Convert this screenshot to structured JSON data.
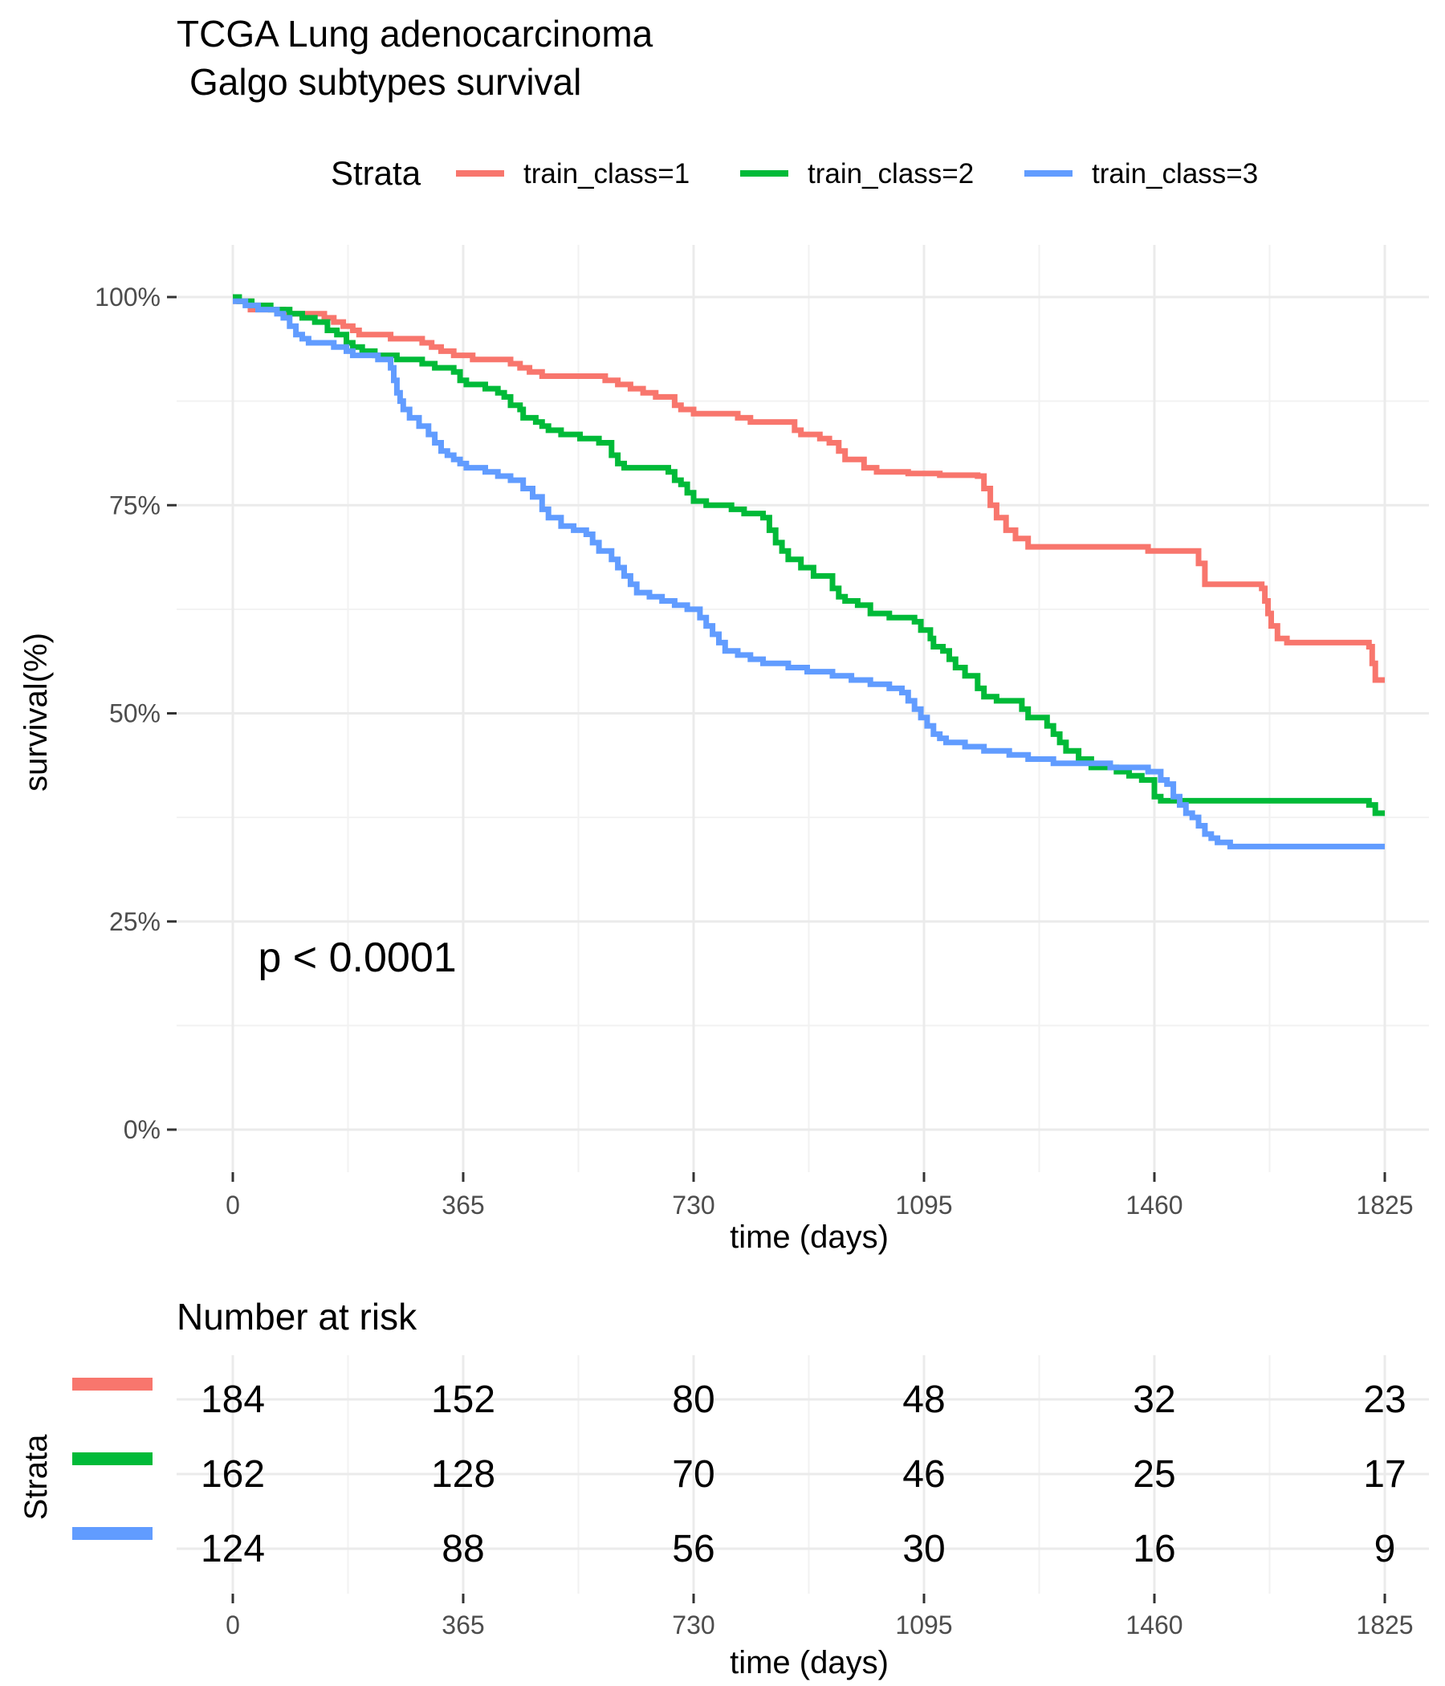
{
  "chart_data": [
    {
      "type": "line",
      "step": true,
      "title": "TCGA Lung adenocarcinoma",
      "subtitle": "Galgo subtypes survival",
      "xlabel": "time (days)",
      "ylabel": "survival(%)",
      "xlim": [
        0,
        1825
      ],
      "ylim": [
        0,
        100
      ],
      "x_ticks": [
        0,
        365,
        730,
        1095,
        1460,
        1825
      ],
      "y_ticks": [
        0,
        25,
        50,
        75,
        100
      ],
      "y_tick_labels": [
        "0%",
        "25%",
        "50%",
        "75%",
        "100%"
      ],
      "grid": true,
      "legend": {
        "title": "Strata",
        "position": "top",
        "entries": [
          "train_class=1",
          "train_class=2",
          "train_class=3"
        ]
      },
      "annotation": "p < 0.0001",
      "annotation_at": [
        40,
        19
      ],
      "series": [
        {
          "name": "train_class=1",
          "color": "#F8766D",
          "points": [
            [
              0,
              100
            ],
            [
              5,
              99.5
            ],
            [
              28,
              98.5
            ],
            [
              80,
              98
            ],
            [
              145,
              97.5
            ],
            [
              160,
              97
            ],
            [
              175,
              96.5
            ],
            [
              190,
              96
            ],
            [
              200,
              95.5
            ],
            [
              250,
              95
            ],
            [
              300,
              94.5
            ],
            [
              315,
              94
            ],
            [
              330,
              93.5
            ],
            [
              350,
              93
            ],
            [
              380,
              92.5
            ],
            [
              440,
              92
            ],
            [
              455,
              91.5
            ],
            [
              470,
              91
            ],
            [
              490,
              90.5
            ],
            [
              590,
              90
            ],
            [
              610,
              89.5
            ],
            [
              630,
              89
            ],
            [
              650,
              88.5
            ],
            [
              670,
              88
            ],
            [
              700,
              87
            ],
            [
              710,
              86.5
            ],
            [
              730,
              86
            ],
            [
              800,
              85.5
            ],
            [
              820,
              85
            ],
            [
              890,
              84
            ],
            [
              900,
              83.5
            ],
            [
              930,
              83
            ],
            [
              945,
              82.5
            ],
            [
              960,
              81.5
            ],
            [
              970,
              80.5
            ],
            [
              1000,
              79.5
            ],
            [
              1020,
              79
            ],
            [
              1070,
              78.8
            ],
            [
              1120,
              78.6
            ],
            [
              1180,
              78.5
            ],
            [
              1190,
              77
            ],
            [
              1200,
              75
            ],
            [
              1210,
              73.5
            ],
            [
              1225,
              72
            ],
            [
              1240,
              71
            ],
            [
              1260,
              70
            ],
            [
              1450,
              69.5
            ],
            [
              1520,
              69.5
            ],
            [
              1530,
              68
            ],
            [
              1540,
              65.5
            ],
            [
              1630,
              65
            ],
            [
              1635,
              63.5
            ],
            [
              1640,
              62
            ],
            [
              1645,
              60.5
            ],
            [
              1655,
              59
            ],
            [
              1670,
              58.5
            ],
            [
              1800,
              58
            ],
            [
              1805,
              56
            ],
            [
              1810,
              54
            ],
            [
              1825,
              54
            ]
          ]
        },
        {
          "name": "train_class=2",
          "color": "#00BA38",
          "points": [
            [
              0,
              100
            ],
            [
              10,
              99.5
            ],
            [
              30,
              99
            ],
            [
              60,
              98.5
            ],
            [
              90,
              98
            ],
            [
              110,
              97.5
            ],
            [
              130,
              97
            ],
            [
              150,
              96
            ],
            [
              165,
              95.5
            ],
            [
              180,
              94.5
            ],
            [
              190,
              94
            ],
            [
              205,
              93.5
            ],
            [
              225,
              93
            ],
            [
              260,
              92.5
            ],
            [
              300,
              92
            ],
            [
              320,
              91.5
            ],
            [
              350,
              91
            ],
            [
              360,
              90
            ],
            [
              370,
              89.5
            ],
            [
              400,
              89
            ],
            [
              420,
              88.5
            ],
            [
              430,
              88
            ],
            [
              440,
              87
            ],
            [
              455,
              86.5
            ],
            [
              460,
              85.5
            ],
            [
              480,
              85
            ],
            [
              490,
              84.5
            ],
            [
              500,
              84
            ],
            [
              520,
              83.5
            ],
            [
              550,
              83
            ],
            [
              580,
              82.5
            ],
            [
              600,
              81
            ],
            [
              610,
              80
            ],
            [
              620,
              79.5
            ],
            [
              690,
              79
            ],
            [
              700,
              78
            ],
            [
              710,
              77.5
            ],
            [
              720,
              76.5
            ],
            [
              730,
              75.5
            ],
            [
              750,
              75
            ],
            [
              790,
              74.5
            ],
            [
              810,
              74
            ],
            [
              840,
              73.5
            ],
            [
              850,
              72
            ],
            [
              860,
              70.5
            ],
            [
              870,
              69.5
            ],
            [
              880,
              68.5
            ],
            [
              900,
              67.5
            ],
            [
              920,
              66.5
            ],
            [
              950,
              65
            ],
            [
              960,
              64
            ],
            [
              970,
              63.5
            ],
            [
              990,
              63
            ],
            [
              1010,
              62
            ],
            [
              1040,
              61.5
            ],
            [
              1080,
              61
            ],
            [
              1090,
              60
            ],
            [
              1105,
              59
            ],
            [
              1110,
              58
            ],
            [
              1125,
              57.5
            ],
            [
              1135,
              56.5
            ],
            [
              1145,
              55.5
            ],
            [
              1160,
              54.5
            ],
            [
              1180,
              53
            ],
            [
              1190,
              52
            ],
            [
              1210,
              51.5
            ],
            [
              1250,
              50.5
            ],
            [
              1260,
              49.5
            ],
            [
              1290,
              48.5
            ],
            [
              1300,
              47.5
            ],
            [
              1310,
              46.5
            ],
            [
              1320,
              45.5
            ],
            [
              1340,
              44.5
            ],
            [
              1360,
              43.5
            ],
            [
              1400,
              43
            ],
            [
              1420,
              42.5
            ],
            [
              1440,
              42
            ],
            [
              1460,
              40
            ],
            [
              1470,
              39.5
            ],
            [
              1800,
              39
            ],
            [
              1810,
              38
            ],
            [
              1825,
              38
            ]
          ]
        },
        {
          "name": "train_class=3",
          "color": "#619CFF",
          "points": [
            [
              0,
              99.5
            ],
            [
              20,
              99
            ],
            [
              40,
              98.5
            ],
            [
              70,
              98
            ],
            [
              80,
              97.5
            ],
            [
              90,
              96.5
            ],
            [
              100,
              95.5
            ],
            [
              110,
              95
            ],
            [
              120,
              94.5
            ],
            [
              160,
              94
            ],
            [
              180,
              93.5
            ],
            [
              190,
              93
            ],
            [
              230,
              92.5
            ],
            [
              250,
              91.5
            ],
            [
              255,
              90
            ],
            [
              260,
              88.5
            ],
            [
              265,
              87.5
            ],
            [
              270,
              86.5
            ],
            [
              280,
              85.5
            ],
            [
              295,
              84.5
            ],
            [
              310,
              83.5
            ],
            [
              320,
              82.5
            ],
            [
              330,
              81.5
            ],
            [
              340,
              81
            ],
            [
              350,
              80.5
            ],
            [
              360,
              80
            ],
            [
              370,
              79.5
            ],
            [
              400,
              79
            ],
            [
              420,
              78.5
            ],
            [
              440,
              78
            ],
            [
              460,
              77
            ],
            [
              475,
              76
            ],
            [
              490,
              74.5
            ],
            [
              500,
              73.5
            ],
            [
              520,
              72.5
            ],
            [
              540,
              72
            ],
            [
              560,
              71.5
            ],
            [
              570,
              70.5
            ],
            [
              580,
              69.5
            ],
            [
              600,
              68.5
            ],
            [
              610,
              67.5
            ],
            [
              620,
              66.5
            ],
            [
              630,
              65.5
            ],
            [
              640,
              64.5
            ],
            [
              660,
              64
            ],
            [
              680,
              63.5
            ],
            [
              700,
              63
            ],
            [
              720,
              62.5
            ],
            [
              740,
              61.5
            ],
            [
              750,
              60.5
            ],
            [
              760,
              59.5
            ],
            [
              770,
              58.5
            ],
            [
              780,
              57.5
            ],
            [
              800,
              57
            ],
            [
              820,
              56.5
            ],
            [
              840,
              56
            ],
            [
              880,
              55.5
            ],
            [
              910,
              55
            ],
            [
              950,
              54.5
            ],
            [
              980,
              54
            ],
            [
              1010,
              53.5
            ],
            [
              1040,
              53
            ],
            [
              1060,
              52.5
            ],
            [
              1070,
              51.5
            ],
            [
              1080,
              50.5
            ],
            [
              1090,
              49.5
            ],
            [
              1100,
              48.5
            ],
            [
              1110,
              47.5
            ],
            [
              1120,
              47
            ],
            [
              1130,
              46.5
            ],
            [
              1160,
              46
            ],
            [
              1190,
              45.5
            ],
            [
              1230,
              45
            ],
            [
              1260,
              44.5
            ],
            [
              1300,
              44
            ],
            [
              1390,
              43.5
            ],
            [
              1450,
              43
            ],
            [
              1470,
              42
            ],
            [
              1480,
              41.5
            ],
            [
              1490,
              40
            ],
            [
              1500,
              39
            ],
            [
              1510,
              38
            ],
            [
              1520,
              37.5
            ],
            [
              1530,
              36.5
            ],
            [
              1540,
              35.5
            ],
            [
              1550,
              35
            ],
            [
              1560,
              34.5
            ],
            [
              1580,
              34
            ],
            [
              1825,
              34
            ]
          ]
        }
      ]
    },
    {
      "type": "table",
      "title": "Number at risk",
      "xlabel": "time (days)",
      "ylabel": "Strata",
      "x": [
        0,
        365,
        730,
        1095,
        1460,
        1825
      ],
      "x_tick_labels": [
        "0",
        "365",
        "730",
        "1095",
        "1460",
        "1825"
      ],
      "rows": [
        {
          "name": "train_class=1",
          "color": "#F8766D",
          "values": [
            184,
            152,
            80,
            48,
            32,
            23
          ]
        },
        {
          "name": "train_class=2",
          "color": "#00BA38",
          "values": [
            162,
            128,
            70,
            46,
            25,
            17
          ]
        },
        {
          "name": "train_class=3",
          "color": "#619CFF",
          "values": [
            124,
            88,
            56,
            30,
            16,
            9
          ]
        }
      ]
    }
  ]
}
